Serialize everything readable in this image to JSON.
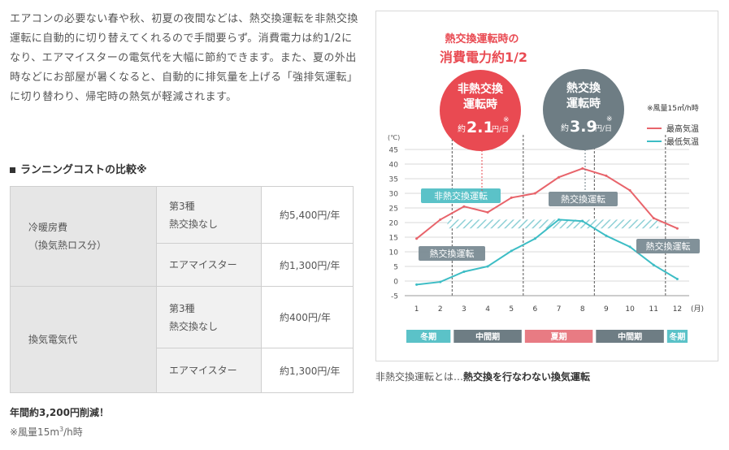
{
  "intro_text": "エアコンの必要ない春や秋、初夏の夜間などは、熱交換運転を非熱交換運転に自動的に切り替えてくれるので手間要らず。消費電力は約1/2になり、エアマイスターの電気代を大幅に節約できます。また、夏の外出時などにお部屋が暑くなると、自動的に排気量を上げる「強排気運転」に切り替わり、帰宅時の熱気が軽減されます。",
  "section_title": "ランニングコストの比較※",
  "cost_table": {
    "rows": [
      {
        "category": "冷暖房費\n（換気熱ロス分）",
        "system": "第3種\n熱交換なし",
        "value": "約5,400円/年"
      },
      {
        "category": "",
        "system": "エアマイスター",
        "value": "約1,300円/年"
      },
      {
        "category": "換気電気代",
        "system": "第3種\n熱交換なし",
        "value": "約400円/年"
      },
      {
        "category": "",
        "system": "エアマイスター",
        "value": "約1,300円/年"
      }
    ]
  },
  "saving_text": "年間約3,200円削減！",
  "footnote": {
    "prefix": "※風量15m",
    "sup": "3",
    "suffix": "/h時"
  },
  "chart_caption": {
    "normal": "非熱交換運転とは…",
    "bold": "熱交換を行なわない換気運転"
  },
  "chart_data": {
    "type": "line",
    "title_line1": "熱交換運転時の",
    "title_line2": "消費電力約1/2",
    "y_unit": "(℃)",
    "x_unit": "(月)",
    "x": [
      1,
      2,
      3,
      4,
      5,
      6,
      7,
      8,
      9,
      10,
      11,
      12
    ],
    "ylim": [
      -5,
      45
    ],
    "yticks": [
      -5,
      0,
      5,
      10,
      15,
      20,
      25,
      30,
      35,
      40,
      45
    ],
    "series": [
      {
        "name": "最高気温",
        "color": "#e8646b",
        "values": [
          14.5,
          21,
          25.5,
          23.5,
          28.5,
          30,
          35.5,
          38.5,
          36,
          31,
          21.5,
          18
        ]
      },
      {
        "name": "最低気温",
        "color": "#3dbdc5",
        "values": [
          -1.2,
          -0.3,
          3.2,
          5,
          10.3,
          14.5,
          21,
          20.5,
          15.5,
          11.7,
          5.5,
          0.7
        ]
      }
    ],
    "airflow_note": "※風量15㎥/h時",
    "bubbles": [
      {
        "label1": "非熱交換",
        "label2": "運転時",
        "prefix": "約",
        "value": "2.1",
        "unit": "円/日",
        "mark": "※",
        "color": "#e94a52"
      },
      {
        "label1": "熱交換",
        "label2": "運転時",
        "prefix": "約",
        "value": "3.9",
        "unit": "円/日",
        "mark": "※",
        "color": "#6e7d84"
      }
    ],
    "labels": {
      "non_exchange": "非熱交換運転",
      "exchange_summer": "熱交換運転",
      "exchange_winter": "熱交換運転",
      "exchange_late": "熱交換運転"
    },
    "non_exchange_band": {
      "x_start": 2.3,
      "x_end": 11.2,
      "y_low": 18,
      "y_high": 21
    },
    "period_dividers": [
      2.5,
      5.5,
      8.5,
      11.5
    ],
    "seasons": [
      {
        "name": "冬期",
        "from": 0.5,
        "to": 2.5,
        "color": "#5bc2c8"
      },
      {
        "name": "中間期",
        "from": 2.5,
        "to": 5.5,
        "color": "#6e7d84"
      },
      {
        "name": "夏期",
        "from": 5.5,
        "to": 8.5,
        "color": "#e87b83"
      },
      {
        "name": "中間期",
        "from": 8.5,
        "to": 11.5,
        "color": "#6e7d84"
      },
      {
        "name": "冬期",
        "from": 11.5,
        "to": 12.5,
        "color": "#5bc2c8"
      }
    ]
  }
}
